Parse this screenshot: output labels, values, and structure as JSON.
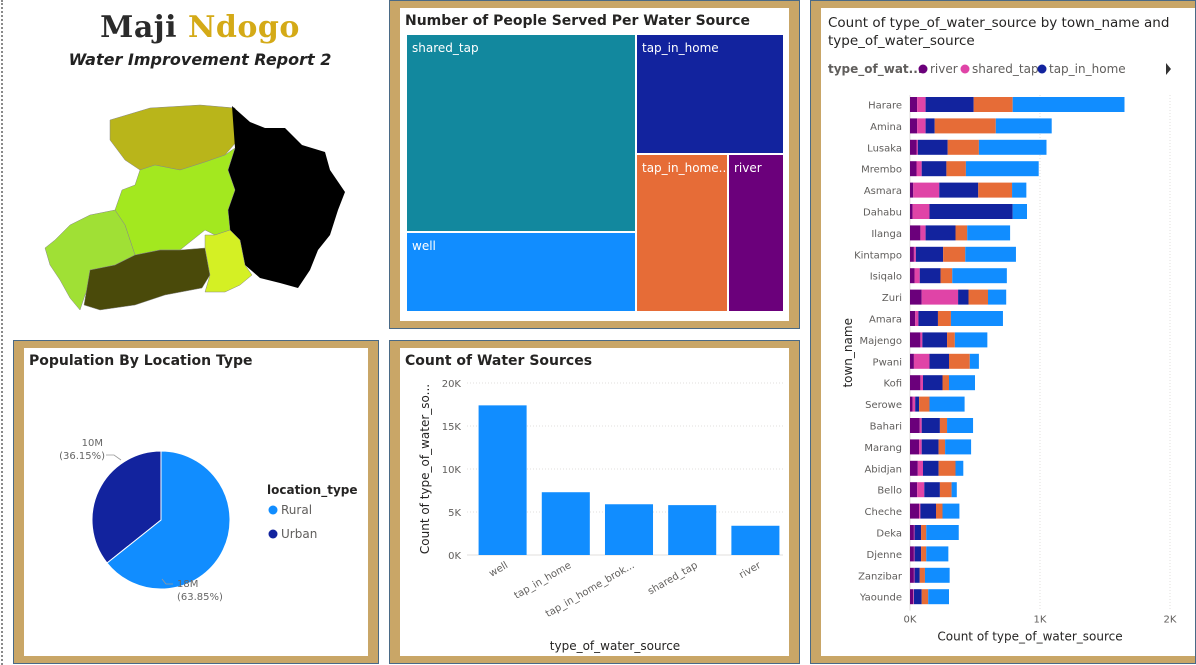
{
  "header": {
    "title_word1": "Maji",
    "title_word2": "Ndogo",
    "subtitle": "Water Improvement Report 2"
  },
  "colors": {
    "panel_frame": "#c9a667",
    "well": "#118dff",
    "tap_in_home": "#12239e",
    "tap_in_home_broken": "#e66c37",
    "shared_tap": "#e044a7",
    "river": "#6b007b",
    "treemap_shared_tap": "#12889e",
    "rural": "#118dff",
    "urban": "#12239e"
  },
  "treemap": {
    "title": "Number of People Served Per Water Source",
    "tiles": [
      {
        "label": "shared_tap",
        "key": "treemap_shared_tap"
      },
      {
        "label": "tap_in_home",
        "key": "tap_in_home"
      },
      {
        "label": "well",
        "key": "well"
      },
      {
        "label": "tap_in_home...",
        "key": "tap_in_home_broken"
      },
      {
        "label": "river",
        "key": "river"
      }
    ]
  },
  "pie": {
    "title": "Population By Location Type",
    "legend_title": "location_type",
    "slices": [
      {
        "name": "Rural",
        "value": 18,
        "label": "18M",
        "pct": "(63.85%)"
      },
      {
        "name": "Urban",
        "value": 10,
        "label": "10M",
        "pct": "(36.15%)"
      }
    ]
  },
  "chart_data": [
    {
      "type": "treemap",
      "title": "Number of People Served Per Water Source",
      "categories": [
        "shared_tap",
        "tap_in_home",
        "well",
        "tap_in_home...",
        "river"
      ]
    },
    {
      "type": "pie",
      "title": "Population By Location Type",
      "categories": [
        "Rural",
        "Urban"
      ],
      "values": [
        18,
        10
      ],
      "value_labels": [
        "18M",
        "10M"
      ],
      "percent_labels": [
        "(63.85%)",
        "(36.15%)"
      ],
      "legend_title": "location_type"
    },
    {
      "type": "bar",
      "title": "Count of Water Sources",
      "categories": [
        "well",
        "tap_in_home",
        "tap_in_home_brok...",
        "shared_tap",
        "river"
      ],
      "values": [
        17400,
        7300,
        5900,
        5800,
        3400
      ],
      "xlabel": "type_of_water_source",
      "ylabel": "Count of type_of_water_so...",
      "ylim": [
        0,
        20000
      ],
      "yticks": [
        0,
        5000,
        10000,
        15000,
        20000
      ],
      "ytick_labels": [
        "0K",
        "5K",
        "10K",
        "15K",
        "20K"
      ],
      "grid": true
    },
    {
      "type": "bar",
      "orientation": "horizontal",
      "stacked": true,
      "title": "Count of type_of_water_source by town_name and type_of_water_source",
      "legend_title": "type_of_wat...",
      "legend_visible": [
        "river",
        "shared_tap",
        "tap_in_home"
      ],
      "xlabel": "Count of type_of_water_source",
      "ylabel": "town_name",
      "xlim": [
        0,
        2000
      ],
      "xticks": [
        0,
        1000,
        2000
      ],
      "xtick_labels": [
        "0K",
        "1K",
        "2K"
      ],
      "grid": true,
      "categories": [
        "Harare",
        "Amina",
        "Lusaka",
        "Mrembo",
        "Asmara",
        "Dahabu",
        "Ilanga",
        "Kintampo",
        "Isiqalo",
        "Zuri",
        "Amara",
        "Majengo",
        "Pwani",
        "Kofi",
        "Serowe",
        "Bahari",
        "Marang",
        "Abidjan",
        "Bello",
        "Cheche",
        "Deka",
        "Djenne",
        "Zanzibar",
        "Yaounde"
      ],
      "series": [
        {
          "name": "river",
          "values": [
            55,
            55,
            50,
            50,
            25,
            20,
            80,
            30,
            35,
            90,
            40,
            80,
            30,
            80,
            20,
            75,
            70,
            60,
            55,
            70,
            30,
            30,
            30,
            25
          ]
        },
        {
          "name": "shared_tap",
          "values": [
            65,
            65,
            10,
            40,
            200,
            130,
            40,
            15,
            40,
            280,
            25,
            15,
            120,
            20,
            20,
            15,
            20,
            40,
            55,
            10,
            5,
            5,
            5,
            5
          ]
        },
        {
          "name": "tap_in_home",
          "values": [
            370,
            70,
            230,
            190,
            300,
            640,
            230,
            210,
            160,
            80,
            150,
            190,
            150,
            150,
            30,
            140,
            130,
            120,
            120,
            120,
            50,
            50,
            40,
            60
          ]
        },
        {
          "name": "tap_in_home_broken",
          "values": [
            300,
            470,
            240,
            150,
            260,
            0,
            90,
            170,
            90,
            150,
            100,
            60,
            160,
            50,
            80,
            55,
            50,
            130,
            90,
            50,
            40,
            40,
            40,
            50
          ]
        },
        {
          "name": "well",
          "values": [
            860,
            430,
            520,
            560,
            110,
            110,
            330,
            390,
            420,
            140,
            400,
            250,
            70,
            200,
            270,
            200,
            200,
            60,
            40,
            130,
            250,
            170,
            190,
            160
          ]
        }
      ]
    }
  ]
}
